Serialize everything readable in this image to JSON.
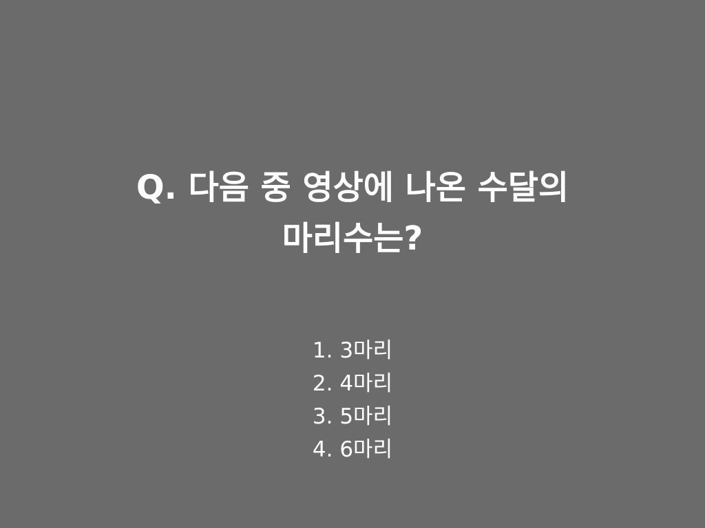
{
  "slide": {
    "background_color": "#6b6b6b",
    "text_color": "#ffffff",
    "question": {
      "line1": "Q. 다음 중 영상에 나온 수달의",
      "line2": "마리수는?"
    },
    "options": [
      "1. 3마리",
      "2. 4마리",
      "3. 5마리",
      "4. 6마리"
    ]
  }
}
